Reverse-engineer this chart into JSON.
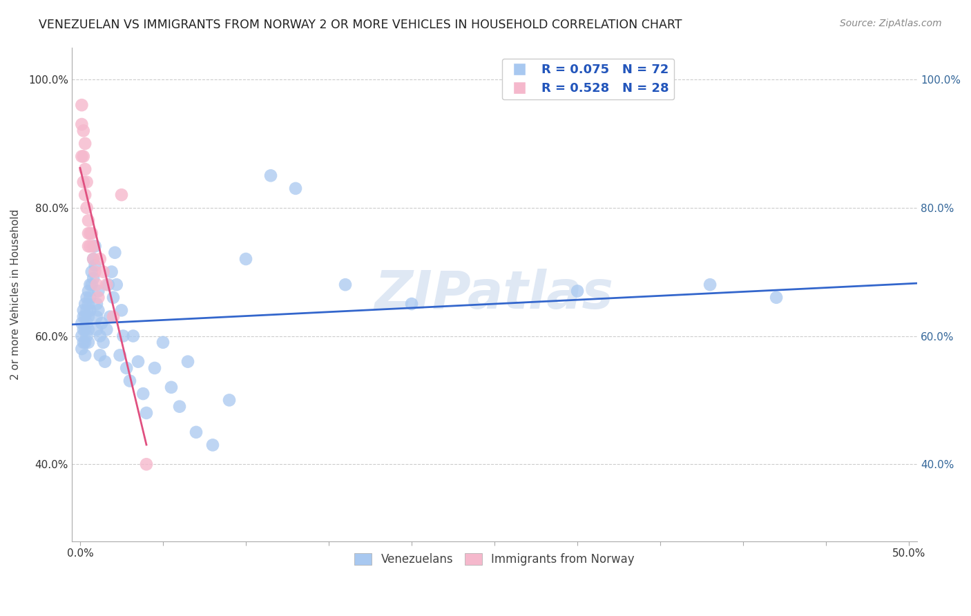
{
  "title": "VENEZUELAN VS IMMIGRANTS FROM NORWAY 2 OR MORE VEHICLES IN HOUSEHOLD CORRELATION CHART",
  "source": "Source: ZipAtlas.com",
  "ylabel": "2 or more Vehicles in Household",
  "xlim": [
    -0.005,
    0.505
  ],
  "ylim": [
    0.28,
    1.05
  ],
  "ytick_vals": [
    0.4,
    0.6,
    0.8,
    1.0
  ],
  "xtick_vals": [
    0.0,
    0.05,
    0.1,
    0.15,
    0.2,
    0.25,
    0.3,
    0.35,
    0.4,
    0.45,
    0.5
  ],
  "xtick_labels_show": [
    0.0,
    0.5
  ],
  "blue_R": 0.075,
  "blue_N": 72,
  "pink_R": 0.528,
  "pink_N": 28,
  "blue_color": "#a8c8f0",
  "pink_color": "#f5b8cc",
  "blue_line_color": "#3366cc",
  "pink_line_color": "#e05080",
  "legend_text_color": "#2255bb",
  "watermark": "ZIPatlas",
  "blue_x": [
    0.001,
    0.001,
    0.001,
    0.002,
    0.002,
    0.002,
    0.002,
    0.003,
    0.003,
    0.003,
    0.003,
    0.003,
    0.004,
    0.004,
    0.004,
    0.004,
    0.005,
    0.005,
    0.005,
    0.005,
    0.005,
    0.006,
    0.006,
    0.006,
    0.007,
    0.007,
    0.008,
    0.008,
    0.009,
    0.009,
    0.01,
    0.01,
    0.01,
    0.011,
    0.011,
    0.012,
    0.012,
    0.013,
    0.014,
    0.015,
    0.016,
    0.017,
    0.018,
    0.019,
    0.02,
    0.021,
    0.022,
    0.024,
    0.025,
    0.026,
    0.028,
    0.03,
    0.032,
    0.035,
    0.038,
    0.04,
    0.045,
    0.05,
    0.055,
    0.06,
    0.065,
    0.07,
    0.08,
    0.09,
    0.1,
    0.115,
    0.13,
    0.16,
    0.2,
    0.3,
    0.38,
    0.42
  ],
  "blue_y": [
    0.62,
    0.6,
    0.58,
    0.64,
    0.63,
    0.61,
    0.59,
    0.65,
    0.63,
    0.61,
    0.59,
    0.57,
    0.66,
    0.64,
    0.62,
    0.6,
    0.67,
    0.65,
    0.63,
    0.61,
    0.59,
    0.68,
    0.66,
    0.64,
    0.7,
    0.68,
    0.72,
    0.69,
    0.74,
    0.71,
    0.65,
    0.63,
    0.61,
    0.67,
    0.64,
    0.6,
    0.57,
    0.62,
    0.59,
    0.56,
    0.61,
    0.68,
    0.63,
    0.7,
    0.66,
    0.73,
    0.68,
    0.57,
    0.64,
    0.6,
    0.55,
    0.53,
    0.6,
    0.56,
    0.51,
    0.48,
    0.55,
    0.59,
    0.52,
    0.49,
    0.56,
    0.45,
    0.43,
    0.5,
    0.72,
    0.85,
    0.83,
    0.68,
    0.65,
    0.67,
    0.68,
    0.66
  ],
  "pink_x": [
    0.001,
    0.001,
    0.001,
    0.002,
    0.002,
    0.002,
    0.003,
    0.003,
    0.003,
    0.004,
    0.004,
    0.005,
    0.005,
    0.005,
    0.006,
    0.006,
    0.007,
    0.008,
    0.008,
    0.009,
    0.01,
    0.011,
    0.012,
    0.014,
    0.016,
    0.02,
    0.025,
    0.04
  ],
  "pink_y": [
    0.96,
    0.93,
    0.88,
    0.92,
    0.88,
    0.84,
    0.9,
    0.86,
    0.82,
    0.84,
    0.8,
    0.78,
    0.76,
    0.74,
    0.76,
    0.74,
    0.76,
    0.74,
    0.72,
    0.7,
    0.68,
    0.66,
    0.72,
    0.7,
    0.68,
    0.63,
    0.82,
    0.4
  ]
}
